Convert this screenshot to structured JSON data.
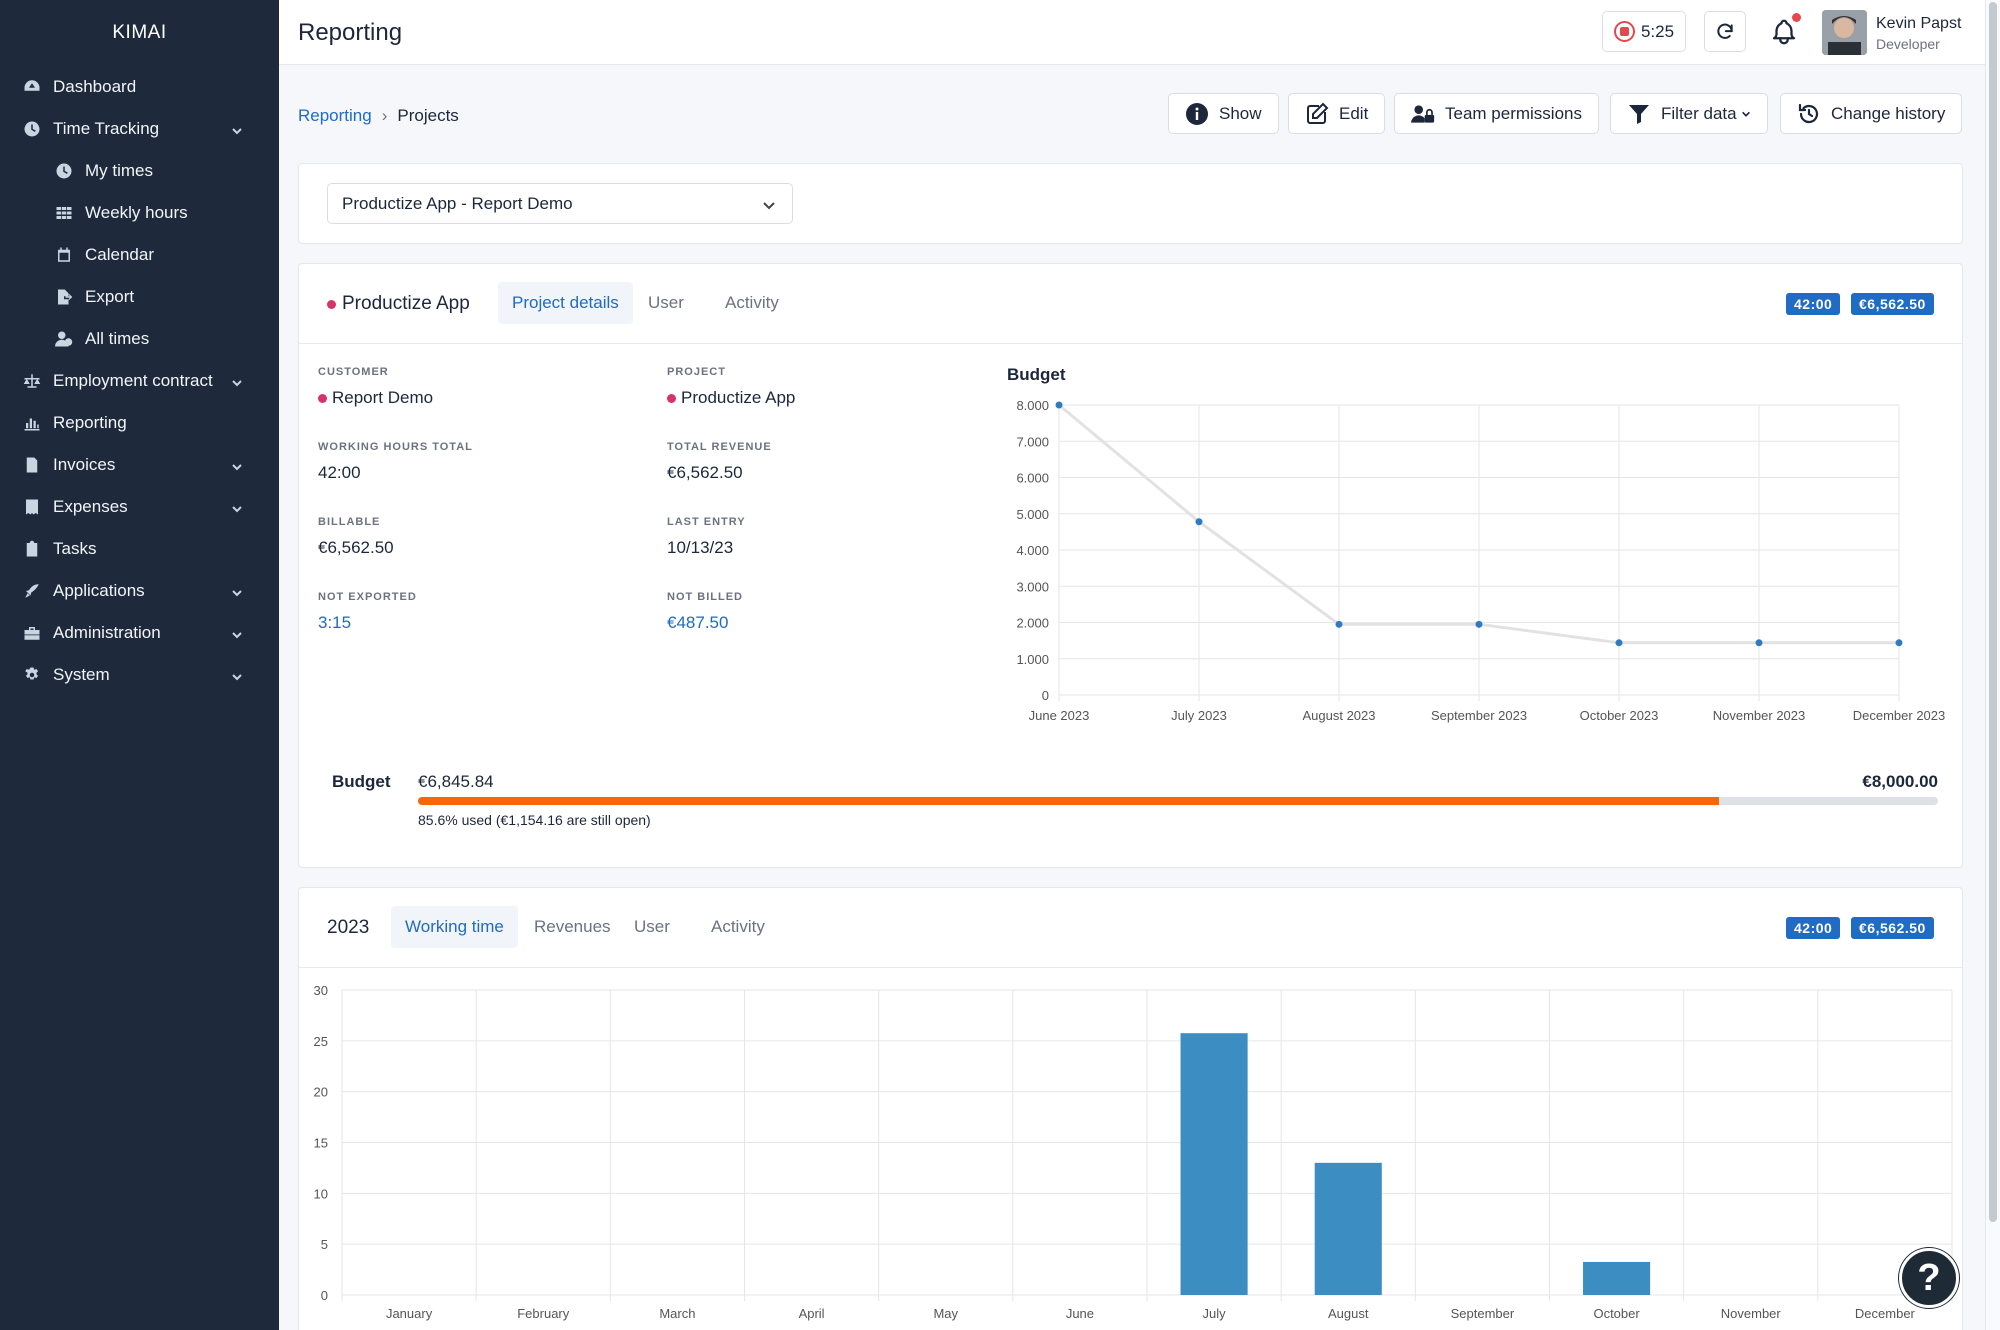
{
  "app": {
    "brand": "KIMAI",
    "page_title": "Reporting"
  },
  "sidebar": {
    "items": [
      {
        "label": "Dashboard",
        "icon": "dashboard-icon"
      },
      {
        "label": "Time Tracking",
        "icon": "clock-icon",
        "expandable": true
      },
      {
        "label": "My times",
        "icon": "clock-icon",
        "sub": true
      },
      {
        "label": "Weekly hours",
        "icon": "grid-icon",
        "sub": true
      },
      {
        "label": "Calendar",
        "icon": "calendar-icon",
        "sub": true
      },
      {
        "label": "Export",
        "icon": "file-export-icon",
        "sub": true
      },
      {
        "label": "All times",
        "icon": "users-clock-icon",
        "sub": true
      },
      {
        "label": "Employment contract",
        "icon": "scale-icon",
        "expandable": true
      },
      {
        "label": "Reporting",
        "icon": "chart-icon"
      },
      {
        "label": "Invoices",
        "icon": "invoice-icon",
        "expandable": true
      },
      {
        "label": "Expenses",
        "icon": "receipt-icon",
        "expandable": true
      },
      {
        "label": "Tasks",
        "icon": "clipboard-icon"
      },
      {
        "label": "Applications",
        "icon": "rocket-icon",
        "expandable": true
      },
      {
        "label": "Administration",
        "icon": "toolbox-icon",
        "expandable": true
      },
      {
        "label": "System",
        "icon": "gear-icon",
        "expandable": true
      }
    ]
  },
  "header": {
    "timer": "5:25",
    "user_name": "Kevin Papst",
    "user_role": "Developer"
  },
  "breadcrumb": {
    "parent": "Reporting",
    "separator": "›",
    "current": "Projects"
  },
  "toolbar": {
    "show": "Show",
    "edit": "Edit",
    "team_permissions": "Team permissions",
    "filter": "Filter data",
    "history": "Change history"
  },
  "project_select": {
    "value": "Productize App - Report Demo"
  },
  "project_card": {
    "title": "Productize App",
    "tabs": [
      "Project details",
      "User",
      "Activity"
    ],
    "badge_time": "42:00",
    "badge_money": "€6,562.50",
    "fields": {
      "customer_label": "CUSTOMER",
      "customer": "Report Demo",
      "project_label": "PROJECT",
      "project": "Productize App",
      "hours_label": "WORKING HOURS TOTAL",
      "hours": "42:00",
      "revenue_label": "TOTAL REVENUE",
      "revenue": "€6,562.50",
      "billable_label": "BILLABLE",
      "billable": "€6,562.50",
      "last_entry_label": "LAST ENTRY",
      "last_entry": "10/13/23",
      "not_exported_label": "NOT EXPORTED",
      "not_exported": "3:15",
      "not_billed_label": "NOT BILLED",
      "not_billed": "€487.50"
    },
    "budget": {
      "label": "Budget",
      "used": "€6,845.84",
      "total": "€8,000.00",
      "percent": 85.6,
      "note": "85.6% used (€1,154.16 are still open)"
    }
  },
  "year_card": {
    "year": "2023",
    "tabs": [
      "Working time",
      "Revenues",
      "User",
      "Activity"
    ],
    "badge_time": "42:00",
    "badge_money": "€6,562.50"
  },
  "chart_data": [
    {
      "type": "line",
      "title": "Budget",
      "x": [
        "June 2023",
        "July 2023",
        "August 2023",
        "September 2023",
        "October 2023",
        "November 2023",
        "December 2023"
      ],
      "values": [
        8000,
        4780,
        1950,
        1950,
        1440,
        1440,
        1440
      ],
      "ylim": [
        0,
        8000
      ],
      "yticks": [
        "0",
        "1.000",
        "2.000",
        "3.000",
        "4.000",
        "5.000",
        "6.000",
        "7.000",
        "8.000"
      ],
      "grid": true,
      "color": "#2e7cbf"
    },
    {
      "type": "bar",
      "categories": [
        "January",
        "February",
        "March",
        "April",
        "May",
        "June",
        "July",
        "August",
        "September",
        "October",
        "November",
        "December"
      ],
      "values": [
        0,
        0,
        0,
        0,
        0,
        0,
        25.75,
        13,
        0,
        3.25,
        0,
        0
      ],
      "ylim": [
        0,
        30
      ],
      "yticks": [
        "0",
        "5",
        "10",
        "15",
        "20",
        "25",
        "30"
      ],
      "grid": true,
      "color": "#3b8dc2"
    }
  ]
}
